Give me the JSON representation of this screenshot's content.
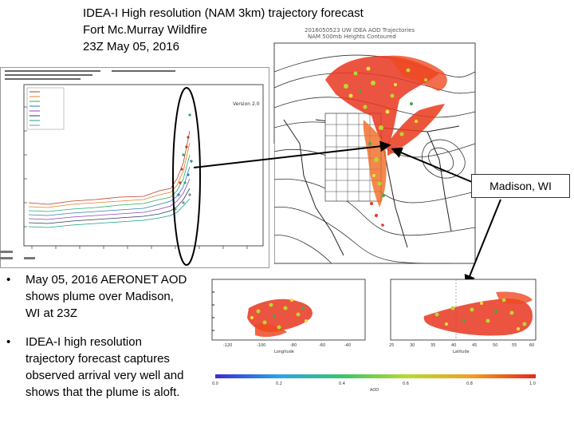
{
  "title": {
    "line1": "IDEA-I High resolution (NAM 3km) trajectory forecast",
    "line2": "Fort Mc.Murray Wildfire",
    "line3": "23Z May 05, 2016"
  },
  "map": {
    "header_line1": "2016050523 UW IDEA AOD Trajectories",
    "header_line2": "NAM 500mb Heights Contoured"
  },
  "aeronet_plot": {
    "header": "Version 2.0"
  },
  "callout": {
    "label": "Madison, WI"
  },
  "cross_section_left": {
    "xlabel": "Longitude",
    "ticks": [
      "-120",
      "-100",
      "-80",
      "-60",
      "-40"
    ]
  },
  "cross_section_right": {
    "xlabel": "Latitude",
    "ticks": [
      "25",
      "30",
      "35",
      "40",
      "45",
      "50",
      "55",
      "60"
    ]
  },
  "colorbar": {
    "label": "AOD",
    "ticks": [
      "0.0",
      "0.2",
      "0.4",
      "0.6",
      "0.8",
      "1.0"
    ]
  },
  "bullets": [
    "May 05, 2016 AERONET AOD shows plume over Madison, WI at 23Z",
    "IDEA-I high resolution trajectory forecast captures observed arrival very well and shows that the plume is aloft."
  ]
}
